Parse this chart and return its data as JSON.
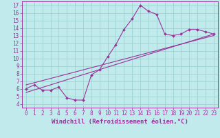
{
  "title": "",
  "xlabel": "Windchill (Refroidissement éolien,°C)",
  "ylabel": "",
  "bg_color": "#c0eaec",
  "line_color": "#993399",
  "grid_color": "#99cccc",
  "xlim": [
    -0.5,
    23.5
  ],
  "ylim": [
    3.5,
    17.5
  ],
  "xticks": [
    0,
    1,
    2,
    3,
    4,
    5,
    6,
    7,
    8,
    9,
    10,
    11,
    12,
    13,
    14,
    15,
    16,
    17,
    18,
    19,
    20,
    21,
    22,
    23
  ],
  "yticks": [
    4,
    5,
    6,
    7,
    8,
    9,
    10,
    11,
    12,
    13,
    14,
    15,
    16,
    17
  ],
  "curve_x": [
    0,
    1,
    2,
    3,
    4,
    5,
    6,
    7,
    8,
    9,
    10,
    11,
    12,
    13,
    14,
    15,
    16,
    17,
    18,
    19,
    20,
    21,
    22,
    23
  ],
  "curve_y": [
    6.0,
    6.5,
    5.8,
    5.8,
    6.2,
    4.8,
    4.5,
    4.5,
    7.8,
    8.5,
    10.2,
    11.8,
    13.8,
    15.2,
    17.0,
    16.2,
    15.8,
    13.2,
    13.0,
    13.2,
    13.8,
    13.8,
    13.5,
    13.2
  ],
  "line2_x": [
    0,
    23
  ],
  "line2_y": [
    5.5,
    13.2
  ],
  "line3_x": [
    0,
    23
  ],
  "line3_y": [
    6.5,
    13.0
  ],
  "marker": "D",
  "marker_size": 2.0,
  "line_width": 0.8,
  "xlabel_fontsize": 6.5,
  "tick_fontsize": 5.5
}
